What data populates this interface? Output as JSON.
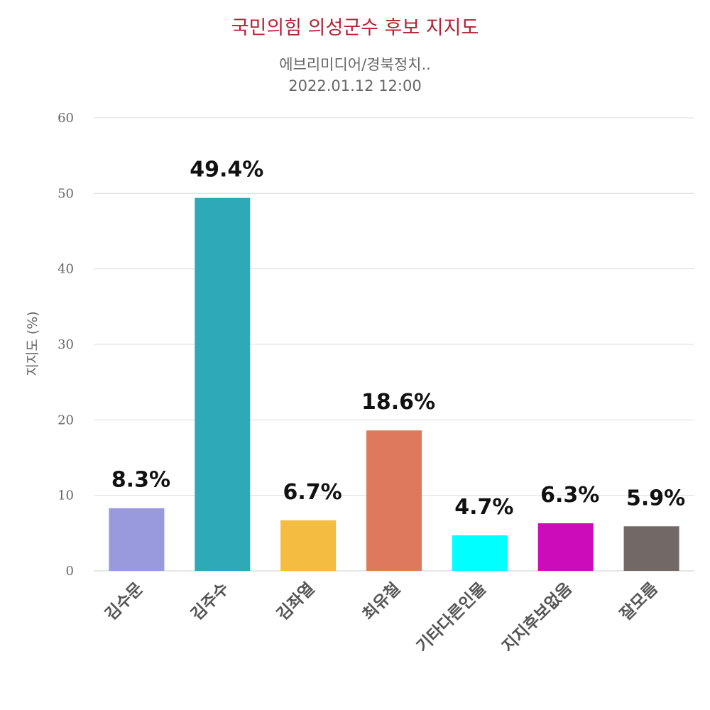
{
  "chart_data": {
    "type": "bar",
    "title": "국민의힘 의성군수 후보 지지도",
    "subtitle_line1": "에브리미디어/경북정치..",
    "subtitle_line2": "2022.01.12 12:00",
    "ylabel": "지지도 (%)",
    "xlabel": "",
    "ylim": [
      0,
      60
    ],
    "yticks": [
      0,
      10,
      20,
      30,
      40,
      50,
      60
    ],
    "grid": true,
    "categories": [
      "김수문",
      "김주수",
      "김좌열",
      "최유철",
      "기타다른인물",
      "지지후보없음",
      "잘모름"
    ],
    "values": [
      8.3,
      49.4,
      6.7,
      18.6,
      4.7,
      6.3,
      5.9
    ],
    "data_labels": [
      "8.3%",
      "49.4%",
      "6.7%",
      "18.6%",
      "4.7%",
      "6.3%",
      "5.9%"
    ],
    "colors": [
      "#9999dd",
      "#2ea9b8",
      "#f4bc40",
      "#de7a5b",
      "#00ffff",
      "#cc0cbb",
      "#726866"
    ]
  }
}
